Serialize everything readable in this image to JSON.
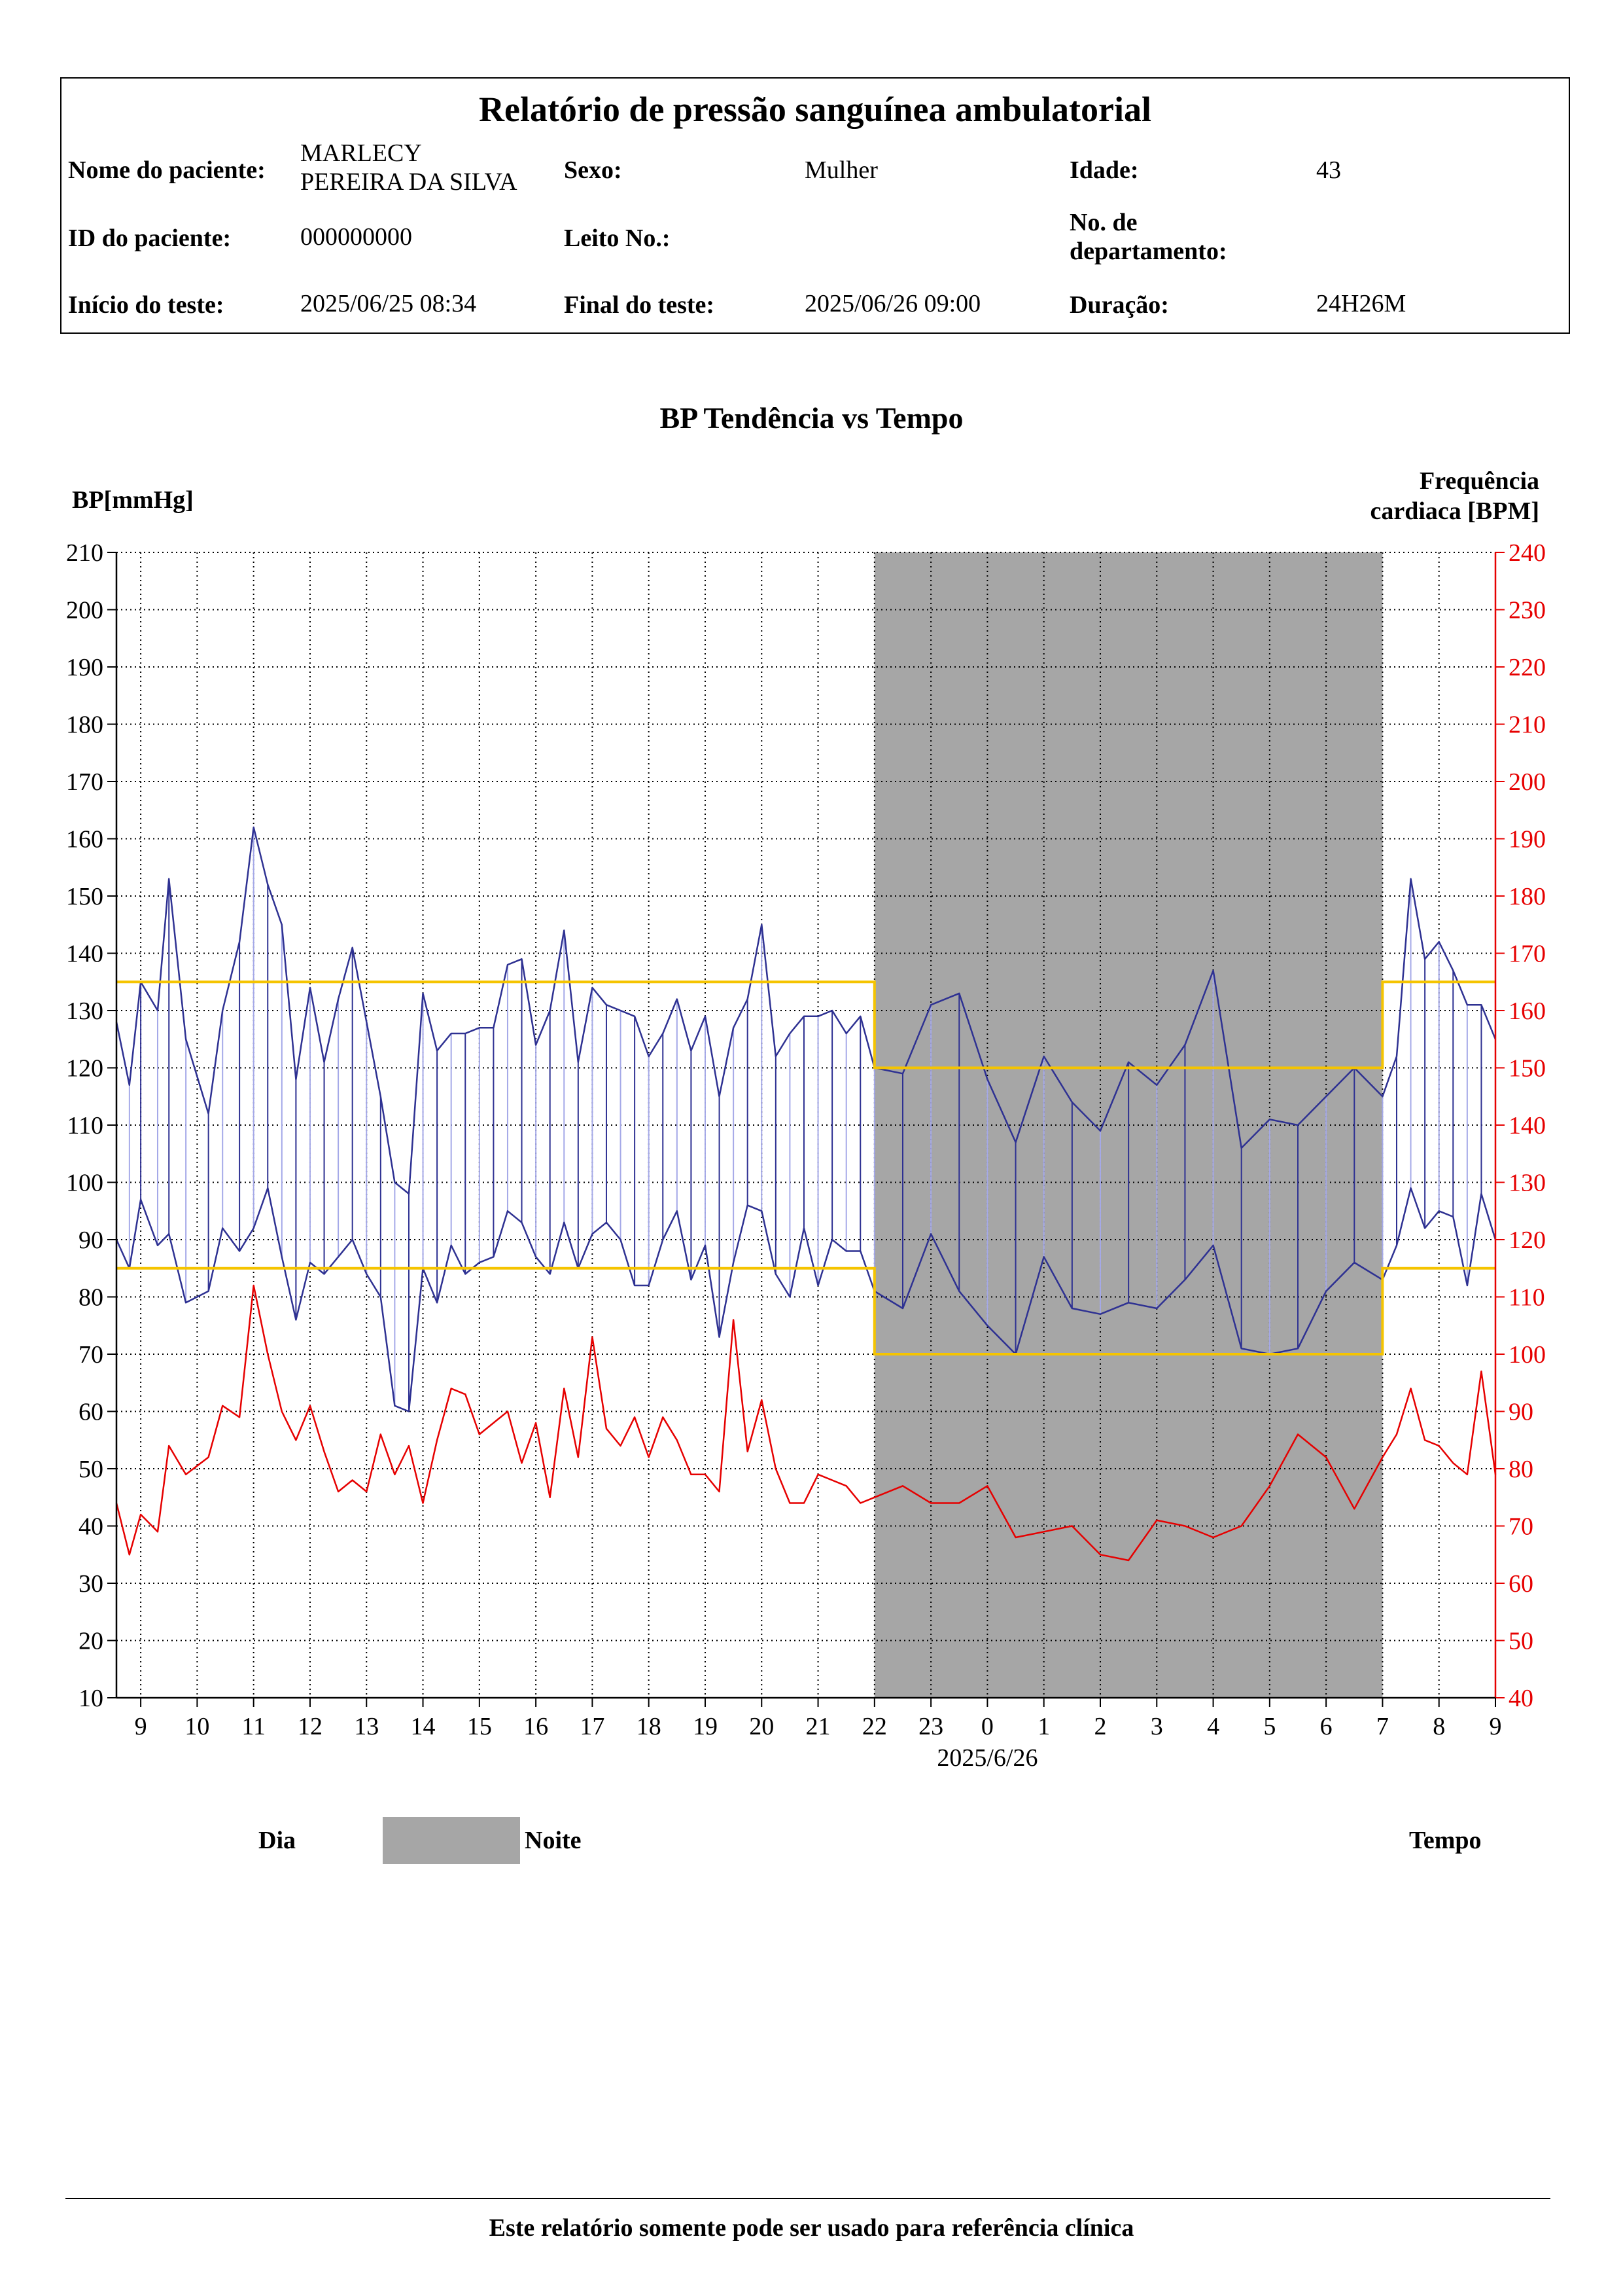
{
  "header": {
    "title": "Relatório de pressão sanguínea ambulatorial",
    "labels": {
      "patient_name": "Nome do paciente:",
      "sex": "Sexo:",
      "age": "Idade:",
      "patient_id": "ID do paciente:",
      "bed": "Leito No.:",
      "department": "No. de\ndepartamento:",
      "test_start": "Início do teste:",
      "test_end": "Final do teste:",
      "duration": "Duração:"
    },
    "values": {
      "patient_name": "MARLECY\nPEREIRA DA SILVA",
      "sex": "Mulher",
      "age": "43",
      "patient_id": "000000000",
      "bed": "",
      "department": "",
      "test_start": "2025/06/25 08:34",
      "test_end": "2025/06/26 09:00",
      "duration": "24H26M"
    }
  },
  "legend": {
    "day": "Dia",
    "night": "Noite",
    "time": "Tempo"
  },
  "footer": {
    "note": "Este relatório somente pode ser usado para referência clínica"
  },
  "colors": {
    "bp": "#2e3192",
    "bp_light": "#a5a9e8",
    "hr": "#e60000",
    "threshold": "#f5c400",
    "night": "#a6a6a6",
    "grid": "#000000"
  },
  "chart_data": {
    "type": "line",
    "title": "BP Tendência vs Tempo",
    "ylabel": "BP[mmHg]",
    "y2label": "Frequência\ncardiaca [BPM]",
    "xlabel": "",
    "date_label": "2025/6/26",
    "ylim": [
      10,
      210
    ],
    "y2lim": [
      40,
      240
    ],
    "yticks": [
      10,
      20,
      30,
      40,
      50,
      60,
      70,
      80,
      90,
      100,
      110,
      120,
      130,
      140,
      150,
      160,
      170,
      180,
      190,
      200,
      210
    ],
    "y2ticks": [
      40,
      50,
      60,
      70,
      80,
      90,
      100,
      110,
      120,
      130,
      140,
      150,
      160,
      170,
      180,
      190,
      200,
      210,
      220,
      230,
      240
    ],
    "x_axis_hours": [
      "9",
      "10",
      "11",
      "12",
      "13",
      "14",
      "15",
      "16",
      "17",
      "18",
      "19",
      "20",
      "21",
      "22",
      "23",
      "0",
      "1",
      "2",
      "3",
      "4",
      "5",
      "6",
      "7",
      "8",
      "9"
    ],
    "xlim_hours": [
      8.57,
      33.0
    ],
    "grid": true,
    "night_period": {
      "start": 22.0,
      "end": 31.0
    },
    "thresholds": {
      "day": {
        "systolic": 135,
        "diastolic": 85
      },
      "night": {
        "systolic": 120,
        "diastolic": 70
      }
    },
    "series": [
      {
        "name": "",
        "role": "systolic",
        "points": [
          [
            8.57,
            128
          ],
          [
            8.8,
            117
          ],
          [
            9.0,
            135
          ],
          [
            9.3,
            130
          ],
          [
            9.5,
            153
          ],
          [
            9.8,
            125
          ],
          [
            10.2,
            112
          ],
          [
            10.45,
            130
          ],
          [
            10.75,
            142
          ],
          [
            11.0,
            162
          ],
          [
            11.25,
            152
          ],
          [
            11.5,
            145
          ],
          [
            11.75,
            118
          ],
          [
            12.0,
            134
          ],
          [
            12.25,
            121
          ],
          [
            12.5,
            132
          ],
          [
            12.75,
            141
          ],
          [
            13.0,
            128
          ],
          [
            13.25,
            115
          ],
          [
            13.5,
            100
          ],
          [
            13.75,
            98
          ],
          [
            14.0,
            133
          ],
          [
            14.25,
            123
          ],
          [
            14.5,
            126
          ],
          [
            14.75,
            126
          ],
          [
            15.0,
            127
          ],
          [
            15.25,
            127
          ],
          [
            15.5,
            138
          ],
          [
            15.75,
            139
          ],
          [
            16.0,
            124
          ],
          [
            16.25,
            130
          ],
          [
            16.5,
            144
          ],
          [
            16.75,
            121
          ],
          [
            17.0,
            134
          ],
          [
            17.25,
            131
          ],
          [
            17.5,
            130
          ],
          [
            17.75,
            129
          ],
          [
            18.0,
            122
          ],
          [
            18.25,
            126
          ],
          [
            18.5,
            132
          ],
          [
            18.75,
            123
          ],
          [
            19.0,
            129
          ],
          [
            19.25,
            115
          ],
          [
            19.5,
            127
          ],
          [
            19.75,
            132
          ],
          [
            20.0,
            145
          ],
          [
            20.25,
            122
          ],
          [
            20.5,
            126
          ],
          [
            20.75,
            129
          ],
          [
            21.0,
            129
          ],
          [
            21.25,
            130
          ],
          [
            21.5,
            126
          ],
          [
            21.75,
            129
          ],
          [
            22.0,
            120
          ],
          [
            22.5,
            119
          ],
          [
            23.0,
            131
          ],
          [
            23.5,
            133
          ],
          [
            24.0,
            118
          ],
          [
            24.5,
            107
          ],
          [
            25.0,
            122
          ],
          [
            25.5,
            114
          ],
          [
            26.0,
            109
          ],
          [
            26.5,
            121
          ],
          [
            27.0,
            117
          ],
          [
            27.5,
            124
          ],
          [
            28.0,
            137
          ],
          [
            28.5,
            106
          ],
          [
            29.0,
            111
          ],
          [
            29.5,
            110
          ],
          [
            30.0,
            115
          ],
          [
            30.5,
            120
          ],
          [
            31.0,
            115
          ],
          [
            31.25,
            122
          ],
          [
            31.5,
            153
          ],
          [
            31.75,
            139
          ],
          [
            32.0,
            142
          ],
          [
            32.25,
            137
          ],
          [
            32.5,
            131
          ],
          [
            32.75,
            131
          ],
          [
            33.0,
            125
          ]
        ]
      },
      {
        "name": "",
        "role": "diastolic",
        "points": [
          [
            8.57,
            90
          ],
          [
            8.8,
            85
          ],
          [
            9.0,
            97
          ],
          [
            9.3,
            89
          ],
          [
            9.5,
            91
          ],
          [
            9.8,
            79
          ],
          [
            10.2,
            81
          ],
          [
            10.45,
            92
          ],
          [
            10.75,
            88
          ],
          [
            11.0,
            92
          ],
          [
            11.25,
            99
          ],
          [
            11.5,
            87
          ],
          [
            11.75,
            76
          ],
          [
            12.0,
            86
          ],
          [
            12.25,
            84
          ],
          [
            12.5,
            87
          ],
          [
            12.75,
            90
          ],
          [
            13.0,
            84
          ],
          [
            13.25,
            80
          ],
          [
            13.5,
            61
          ],
          [
            13.75,
            60
          ],
          [
            14.0,
            85
          ],
          [
            14.25,
            79
          ],
          [
            14.5,
            89
          ],
          [
            14.75,
            84
          ],
          [
            15.0,
            86
          ],
          [
            15.25,
            87
          ],
          [
            15.5,
            95
          ],
          [
            15.75,
            93
          ],
          [
            16.0,
            87
          ],
          [
            16.25,
            84
          ],
          [
            16.5,
            93
          ],
          [
            16.75,
            85
          ],
          [
            17.0,
            91
          ],
          [
            17.25,
            93
          ],
          [
            17.5,
            90
          ],
          [
            17.75,
            82
          ],
          [
            18.0,
            82
          ],
          [
            18.25,
            90
          ],
          [
            18.5,
            95
          ],
          [
            18.75,
            83
          ],
          [
            19.0,
            89
          ],
          [
            19.25,
            73
          ],
          [
            19.5,
            86
          ],
          [
            19.75,
            96
          ],
          [
            20.0,
            95
          ],
          [
            20.25,
            84
          ],
          [
            20.5,
            80
          ],
          [
            20.75,
            92
          ],
          [
            21.0,
            82
          ],
          [
            21.25,
            90
          ],
          [
            21.5,
            88
          ],
          [
            21.75,
            88
          ],
          [
            22.0,
            81
          ],
          [
            22.5,
            78
          ],
          [
            23.0,
            91
          ],
          [
            23.5,
            81
          ],
          [
            24.0,
            75
          ],
          [
            24.5,
            70
          ],
          [
            25.0,
            87
          ],
          [
            25.5,
            78
          ],
          [
            26.0,
            77
          ],
          [
            26.5,
            79
          ],
          [
            27.0,
            78
          ],
          [
            27.5,
            83
          ],
          [
            28.0,
            89
          ],
          [
            28.5,
            71
          ],
          [
            29.0,
            70
          ],
          [
            29.5,
            71
          ],
          [
            30.0,
            81
          ],
          [
            30.5,
            86
          ],
          [
            31.0,
            83
          ],
          [
            31.25,
            89
          ],
          [
            31.5,
            99
          ],
          [
            31.75,
            92
          ],
          [
            32.0,
            95
          ],
          [
            32.25,
            94
          ],
          [
            32.5,
            82
          ],
          [
            32.75,
            98
          ],
          [
            33.0,
            90
          ]
        ]
      },
      {
        "name": "",
        "role": "heart_rate",
        "axis": "right",
        "points": [
          [
            8.57,
            74
          ],
          [
            8.8,
            65
          ],
          [
            9.0,
            72
          ],
          [
            9.3,
            69
          ],
          [
            9.5,
            84
          ],
          [
            9.8,
            79
          ],
          [
            10.2,
            82
          ],
          [
            10.45,
            91
          ],
          [
            10.75,
            89
          ],
          [
            11.0,
            112
          ],
          [
            11.25,
            100
          ],
          [
            11.5,
            90
          ],
          [
            11.75,
            85
          ],
          [
            12.0,
            91
          ],
          [
            12.25,
            83
          ],
          [
            12.5,
            76
          ],
          [
            12.75,
            78
          ],
          [
            13.0,
            76
          ],
          [
            13.25,
            86
          ],
          [
            13.5,
            79
          ],
          [
            13.75,
            84
          ],
          [
            14.0,
            74
          ],
          [
            14.25,
            85
          ],
          [
            14.5,
            94
          ],
          [
            14.75,
            93
          ],
          [
            15.0,
            86
          ],
          [
            15.25,
            88
          ],
          [
            15.5,
            90
          ],
          [
            15.75,
            81
          ],
          [
            16.0,
            88
          ],
          [
            16.25,
            75
          ],
          [
            16.5,
            94
          ],
          [
            16.75,
            82
          ],
          [
            17.0,
            103
          ],
          [
            17.25,
            87
          ],
          [
            17.5,
            84
          ],
          [
            17.75,
            89
          ],
          [
            18.0,
            82
          ],
          [
            18.25,
            89
          ],
          [
            18.5,
            85
          ],
          [
            18.75,
            79
          ],
          [
            19.0,
            79
          ],
          [
            19.25,
            76
          ],
          [
            19.5,
            106
          ],
          [
            19.75,
            83
          ],
          [
            20.0,
            92
          ],
          [
            20.25,
            80
          ],
          [
            20.5,
            74
          ],
          [
            20.75,
            74
          ],
          [
            21.0,
            79
          ],
          [
            21.5,
            77
          ],
          [
            21.75,
            74
          ],
          [
            22.0,
            75
          ],
          [
            22.5,
            77
          ],
          [
            23.0,
            74
          ],
          [
            23.5,
            74
          ],
          [
            24.0,
            77
          ],
          [
            24.5,
            68
          ],
          [
            25.0,
            69
          ],
          [
            25.5,
            70
          ],
          [
            26.0,
            65
          ],
          [
            26.5,
            64
          ],
          [
            27.0,
            71
          ],
          [
            27.5,
            70
          ],
          [
            28.0,
            68
          ],
          [
            28.5,
            70
          ],
          [
            29.0,
            77
          ],
          [
            29.5,
            86
          ],
          [
            30.0,
            82
          ],
          [
            30.5,
            73
          ],
          [
            31.0,
            82
          ],
          [
            31.25,
            86
          ],
          [
            31.5,
            94
          ],
          [
            31.75,
            85
          ],
          [
            32.0,
            84
          ],
          [
            32.25,
            81
          ],
          [
            32.5,
            79
          ],
          [
            32.75,
            97
          ],
          [
            33.0,
            79
          ]
        ]
      }
    ]
  }
}
